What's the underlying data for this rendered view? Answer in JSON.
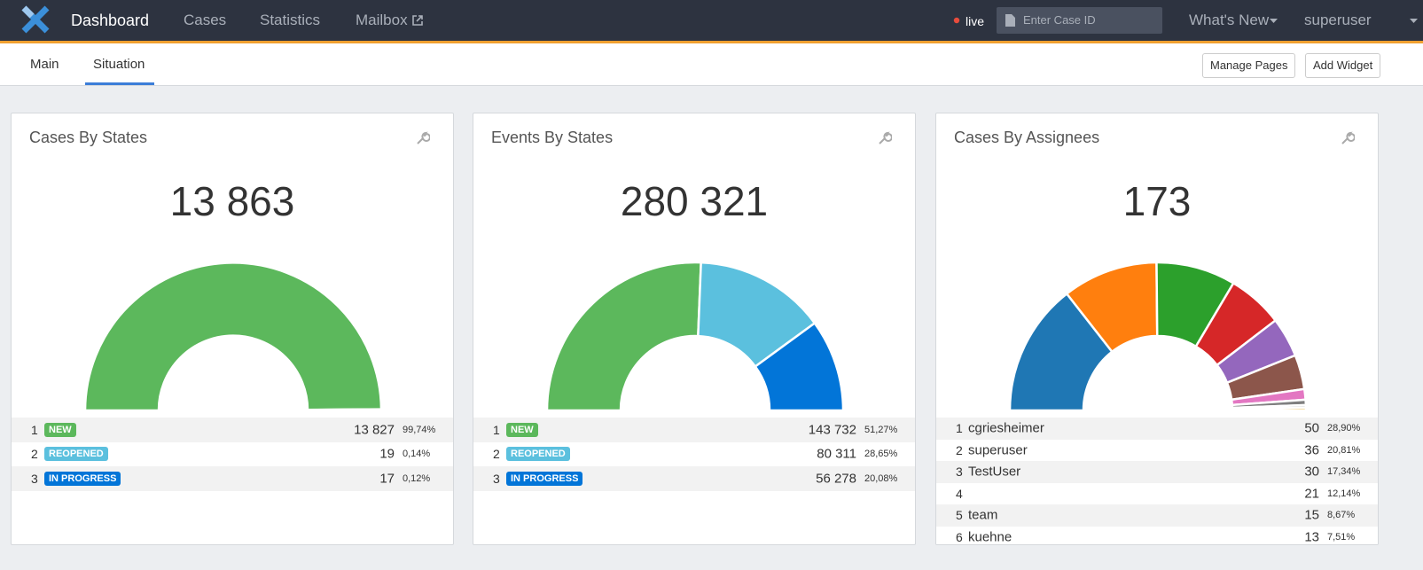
{
  "nav": {
    "brand": "Dashboard",
    "links": [
      "Cases",
      "Statistics",
      "Mailbox"
    ],
    "live": "live",
    "search_placeholder": "Enter Case ID",
    "whats_new": "What's New",
    "user": "superuser"
  },
  "tabs": {
    "items": [
      "Main",
      "Situation"
    ],
    "buttons": [
      "Manage Pages",
      "Add Widget"
    ]
  },
  "widgets": [
    {
      "title": "Cases By States",
      "total": "13 863",
      "rows": [
        {
          "rank": 1,
          "label": "NEW",
          "color": "#5cb85c",
          "value": 13827,
          "value_label": "13 827",
          "percent_label": "99,74%"
        },
        {
          "rank": 2,
          "label": "REOPENED",
          "color": "#5bc0de",
          "value": 19,
          "value_label": "19",
          "percent_label": "0,14%"
        },
        {
          "rank": 3,
          "label": "IN PROGRESS",
          "color": "#0275d8",
          "value": 17,
          "value_label": "17",
          "percent_label": "0,12%"
        }
      ]
    },
    {
      "title": "Events By States",
      "total": "280 321",
      "rows": [
        {
          "rank": 1,
          "label": "NEW",
          "color": "#5cb85c",
          "value": 143732,
          "value_label": "143 732",
          "percent_label": "51,27%"
        },
        {
          "rank": 2,
          "label": "REOPENED",
          "color": "#5bc0de",
          "value": 80311,
          "value_label": "80 311",
          "percent_label": "28,65%"
        },
        {
          "rank": 3,
          "label": "IN PROGRESS",
          "color": "#0275d8",
          "value": 56278,
          "value_label": "56 278",
          "percent_label": "20,08%"
        }
      ]
    },
    {
      "title": "Cases By Assignees",
      "total": "173",
      "rows": [
        {
          "rank": 1,
          "label": "cgriesheimer",
          "color": "#1f77b4",
          "value": 50,
          "value_label": "50",
          "percent_label": "28,90%"
        },
        {
          "rank": 2,
          "label": "superuser",
          "color": "#ff7f0e",
          "value": 36,
          "value_label": "36",
          "percent_label": "20,81%"
        },
        {
          "rank": 3,
          "label": "TestUser",
          "color": "#2ca02c",
          "value": 30,
          "value_label": "30",
          "percent_label": "17,34%"
        },
        {
          "rank": 4,
          "label": null,
          "color": "#d62728",
          "value": 21,
          "value_label": "21",
          "percent_label": "12,14%"
        },
        {
          "rank": 5,
          "label": "team",
          "color": "#9467bd",
          "value": 15,
          "value_label": "15",
          "percent_label": "8,67%"
        },
        {
          "rank": 6,
          "label": "kuehne",
          "color": "#8c564b",
          "value": 13,
          "value_label": "13",
          "percent_label": "7,51%"
        }
      ],
      "unlisted_segments": [
        {
          "value": 4,
          "color": "#e377c2"
        },
        {
          "value": 2,
          "color": "#7f7f7f"
        },
        {
          "value": 1,
          "color": "#c7c7c7"
        },
        {
          "value": 1,
          "color": "#e6a817"
        }
      ]
    }
  ]
}
